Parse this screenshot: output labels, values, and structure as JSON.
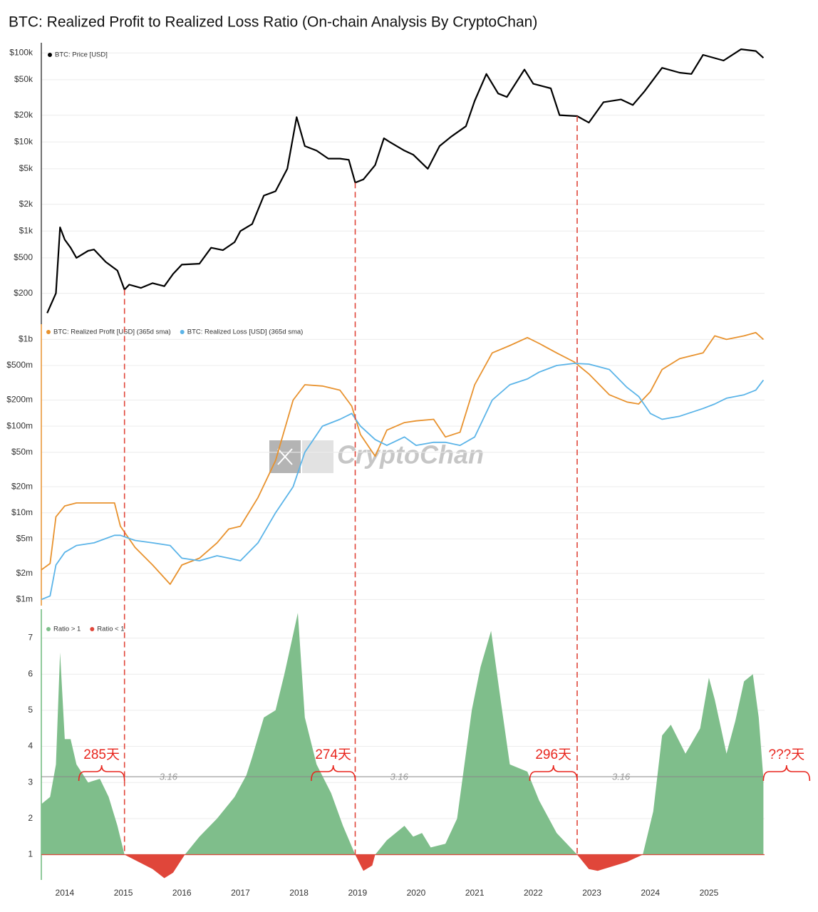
{
  "title": "BTC: Realized Profit to Realized Loss Ratio (On-chain Analysis By CryptoChan)",
  "watermark": "CryptoChan",
  "chart_data": [
    {
      "type": "line",
      "log_scale": true,
      "grid": true,
      "axis_color": "#444444",
      "xlim": [
        2013.6,
        2025.95
      ],
      "ylim": [
        90,
        130000
      ],
      "yticks": [
        {
          "value": 200,
          "label": "$200"
        },
        {
          "value": 500,
          "label": "$500"
        },
        {
          "value": 1000,
          "label": "$1k"
        },
        {
          "value": 2000,
          "label": "$2k"
        },
        {
          "value": 5000,
          "label": "$5k"
        },
        {
          "value": 10000,
          "label": "$10k"
        },
        {
          "value": 20000,
          "label": "$20k"
        },
        {
          "value": 50000,
          "label": "$50k"
        },
        {
          "value": 100000,
          "label": "$100k"
        }
      ],
      "x": [
        2013.7,
        2013.85,
        2013.92,
        2014.0,
        2014.1,
        2014.2,
        2014.4,
        2014.5,
        2014.7,
        2014.9,
        2015.02,
        2015.1,
        2015.3,
        2015.5,
        2015.7,
        2015.85,
        2016.0,
        2016.3,
        2016.5,
        2016.7,
        2016.9,
        2017.0,
        2017.2,
        2017.4,
        2017.6,
        2017.8,
        2017.96,
        2018.1,
        2018.3,
        2018.5,
        2018.7,
        2018.85,
        2018.96,
        2019.1,
        2019.3,
        2019.45,
        2019.55,
        2019.8,
        2019.95,
        2020.2,
        2020.4,
        2020.6,
        2020.85,
        2021.0,
        2021.2,
        2021.4,
        2021.55,
        2021.85,
        2022.0,
        2022.3,
        2022.45,
        2022.75,
        2022.95,
        2023.2,
        2023.5,
        2023.7,
        2023.9,
        2024.2,
        2024.5,
        2024.7,
        2024.9,
        2025.25,
        2025.55,
        2025.8,
        2025.93
      ],
      "series": [
        {
          "name": "BTC: Price [USD]",
          "color": "#000000",
          "values": [
            120,
            200,
            1100,
            800,
            650,
            500,
            600,
            620,
            450,
            360,
            220,
            250,
            230,
            260,
            240,
            330,
            420,
            430,
            650,
            610,
            750,
            1000,
            1200,
            2500,
            2800,
            5000,
            19000,
            9000,
            8000,
            6500,
            6500,
            6300,
            3500,
            3800,
            5500,
            11000,
            10000,
            8000,
            7200,
            5000,
            9000,
            11500,
            15000,
            29000,
            58000,
            35000,
            32000,
            65000,
            45000,
            40000,
            20000,
            19500,
            16500,
            28000,
            30000,
            26000,
            37000,
            68000,
            60000,
            58000,
            95000,
            82000,
            110000,
            105000,
            88000
          ]
        }
      ]
    },
    {
      "type": "line",
      "log_scale": true,
      "grid": true,
      "axis_color": "#e8922e",
      "xlim": [
        2013.6,
        2025.95
      ],
      "ylim": [
        850000,
        1500000000
      ],
      "yticks": [
        {
          "value": 1000000,
          "label": "$1m"
        },
        {
          "value": 2000000,
          "label": "$2m"
        },
        {
          "value": 5000000,
          "label": "$5m"
        },
        {
          "value": 10000000,
          "label": "$10m"
        },
        {
          "value": 20000000,
          "label": "$20m"
        },
        {
          "value": 50000000,
          "label": "$50m"
        },
        {
          "value": 100000000,
          "label": "$100m"
        },
        {
          "value": 200000000,
          "label": "$200m"
        },
        {
          "value": 500000000,
          "label": "$500m"
        },
        {
          "value": 1000000000,
          "label": "$1b"
        }
      ],
      "x": [
        2013.6,
        2013.75,
        2013.85,
        2014.0,
        2014.2,
        2014.5,
        2014.85,
        2014.95,
        2015.2,
        2015.5,
        2015.8,
        2016.0,
        2016.3,
        2016.6,
        2016.8,
        2017.0,
        2017.3,
        2017.6,
        2017.9,
        2018.1,
        2018.4,
        2018.7,
        2018.9,
        2019.05,
        2019.3,
        2019.5,
        2019.8,
        2020.0,
        2020.3,
        2020.5,
        2020.75,
        2021.0,
        2021.3,
        2021.6,
        2021.9,
        2022.1,
        2022.4,
        2022.7,
        2022.95,
        2023.3,
        2023.6,
        2023.8,
        2024.0,
        2024.2,
        2024.5,
        2024.9,
        2025.1,
        2025.3,
        2025.6,
        2025.8,
        2025.93
      ],
      "series": [
        {
          "name": "BTC: Realized Profit [USD] (365d sma)",
          "color": "#e8922e",
          "values": [
            2200000,
            2600000,
            9000000,
            12000000,
            13000000,
            13000000,
            13000000,
            7000000,
            4000000,
            2500000,
            1500000,
            2500000,
            3000000,
            4500000,
            6500000,
            7000000,
            15000000,
            40000000,
            200000000,
            300000000,
            290000000,
            260000000,
            170000000,
            80000000,
            45000000,
            90000000,
            110000000,
            115000000,
            120000000,
            75000000,
            85000000,
            300000000,
            700000000,
            850000000,
            1050000000,
            900000000,
            700000000,
            550000000,
            400000000,
            230000000,
            190000000,
            180000000,
            250000000,
            450000000,
            600000000,
            700000000,
            1100000000,
            1000000000,
            1100000000,
            1200000000,
            1000000000
          ]
        },
        {
          "name": "BTC: Realized Loss [USD] (365d sma)",
          "color": "#5bb4e8",
          "values": [
            1000000,
            1100000,
            2500000,
            3500000,
            4200000,
            4500000,
            5500000,
            5500000,
            4800000,
            4500000,
            4200000,
            3000000,
            2800000,
            3200000,
            3000000,
            2800000,
            4500000,
            10000000,
            20000000,
            50000000,
            100000000,
            120000000,
            140000000,
            100000000,
            70000000,
            60000000,
            75000000,
            60000000,
            65000000,
            65000000,
            60000000,
            75000000,
            200000000,
            300000000,
            350000000,
            420000000,
            500000000,
            530000000,
            520000000,
            450000000,
            280000000,
            220000000,
            140000000,
            120000000,
            130000000,
            160000000,
            180000000,
            210000000,
            230000000,
            260000000,
            340000000
          ]
        }
      ]
    },
    {
      "type": "area",
      "grid": true,
      "axis_color": "#6db87c",
      "xlim": [
        2013.6,
        2025.95
      ],
      "ylim": [
        0.3,
        7.8
      ],
      "baseline": 1,
      "threshold": 3.16,
      "yticks": [
        1,
        2,
        3,
        4,
        5,
        6,
        7
      ],
      "xticks": [
        2014,
        2015,
        2016,
        2017,
        2018,
        2019,
        2020,
        2021,
        2022,
        2023,
        2024,
        2025
      ],
      "x": [
        2013.6,
        2013.75,
        2013.85,
        2013.92,
        2014.0,
        2014.1,
        2014.2,
        2014.4,
        2014.6,
        2014.75,
        2014.9,
        2015.02,
        2015.2,
        2015.5,
        2015.7,
        2015.85,
        2016.05,
        2016.3,
        2016.6,
        2016.9,
        2017.1,
        2017.2,
        2017.4,
        2017.6,
        2017.75,
        2017.9,
        2017.98,
        2018.1,
        2018.3,
        2018.55,
        2018.75,
        2018.96,
        2019.1,
        2019.25,
        2019.3,
        2019.5,
        2019.8,
        2019.95,
        2020.1,
        2020.25,
        2020.5,
        2020.7,
        2020.95,
        2021.1,
        2021.28,
        2021.45,
        2021.6,
        2021.9,
        2022.1,
        2022.4,
        2022.75,
        2022.95,
        2023.1,
        2023.4,
        2023.6,
        2023.87,
        2024.05,
        2024.2,
        2024.35,
        2024.6,
        2024.85,
        2025.0,
        2025.1,
        2025.3,
        2025.45,
        2025.6,
        2025.75,
        2025.85,
        2025.93
      ],
      "series": [
        {
          "name": "Ratio > 1",
          "color": "#7fbe8b",
          "values": [
            2.4,
            2.6,
            3.5,
            6.6,
            4.2,
            4.2,
            3.5,
            3.0,
            3.1,
            2.6,
            1.8,
            1,
            null,
            null,
            null,
            null,
            1,
            1.5,
            2.0,
            2.6,
            3.2,
            3.7,
            4.8,
            5.0,
            6.0,
            7.1,
            7.7,
            4.8,
            3.5,
            2.7,
            1.8,
            1,
            null,
            null,
            1,
            1.4,
            1.8,
            1.5,
            1.6,
            1.2,
            1.3,
            2.0,
            5.0,
            6.2,
            7.2,
            5.2,
            3.5,
            3.3,
            2.5,
            1.6,
            1,
            null,
            null,
            null,
            null,
            1,
            2.2,
            4.3,
            4.6,
            3.8,
            4.5,
            5.9,
            5.3,
            3.8,
            4.7,
            5.8,
            6.0,
            4.8,
            3.1
          ]
        },
        {
          "name": "Ratio < 1",
          "color": "#e0463a",
          "values": [
            null,
            null,
            null,
            null,
            null,
            null,
            null,
            null,
            null,
            null,
            null,
            1,
            0.85,
            0.6,
            0.35,
            0.5,
            1,
            null,
            null,
            null,
            null,
            null,
            null,
            null,
            null,
            null,
            null,
            null,
            null,
            null,
            null,
            1,
            0.55,
            0.7,
            1,
            null,
            null,
            null,
            null,
            null,
            null,
            null,
            null,
            null,
            null,
            null,
            null,
            null,
            null,
            null,
            1,
            0.6,
            0.55,
            0.7,
            0.8,
            1,
            null,
            null,
            null,
            null,
            null,
            null,
            null,
            null,
            null,
            null,
            null,
            null,
            null
          ]
        }
      ],
      "annotations": [
        {
          "text": "285天",
          "start": 2014.24,
          "end": 2015.02
        },
        {
          "text": "274天",
          "start": 2018.21,
          "end": 2018.96
        },
        {
          "text": "296天",
          "start": 2021.94,
          "end": 2022.75
        },
        {
          "text": "???天",
          "start": 2025.93
        }
      ]
    }
  ]
}
